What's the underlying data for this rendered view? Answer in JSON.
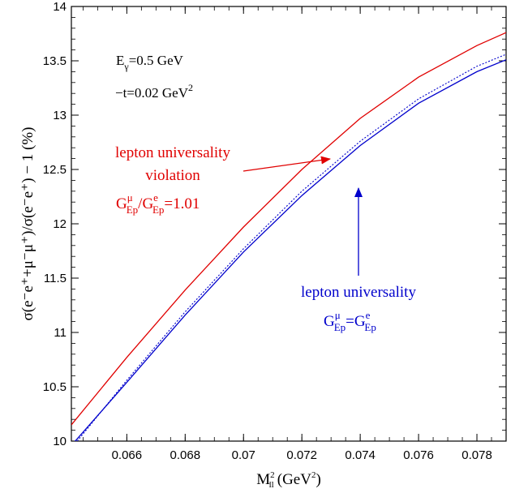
{
  "chart_data": {
    "type": "line",
    "xlabel": {
      "main": "M",
      "sup": "2",
      "sub": "ll",
      "units": "(GeV",
      "units_sup": "2",
      "units_close": ")"
    },
    "ylabel": "σ(e⁻e⁺+μ⁻μ⁺)/σ(e⁻e⁺) − 1 (%)",
    "xlim": [
      0.0641,
      0.079
    ],
    "ylim": [
      10,
      14
    ],
    "xticks": [
      0.066,
      0.068,
      0.07,
      0.072,
      0.074,
      0.076,
      0.078
    ],
    "xtick_labels": [
      "0.066",
      "0.068",
      "0.07",
      "0.072",
      "0.074",
      "0.076",
      "0.078"
    ],
    "yticks": [
      10,
      10.5,
      11,
      11.5,
      12,
      12.5,
      13,
      13.5,
      14
    ],
    "ytick_labels": [
      "10",
      "10.5",
      "11",
      "11.5",
      "12",
      "12.5",
      "13",
      "13.5",
      "14"
    ],
    "series": [
      {
        "style": "solid",
        "color": "#e00000",
        "x": [
          0.0641,
          0.066,
          0.068,
          0.07,
          0.072,
          0.074,
          0.076,
          0.078,
          0.079
        ],
        "y": [
          10.15,
          10.77,
          11.39,
          11.97,
          12.5,
          12.97,
          13.35,
          13.64,
          13.76
        ]
      },
      {
        "style": "dotted",
        "color": "#0000cc",
        "x": [
          0.0643,
          0.066,
          0.068,
          0.07,
          0.072,
          0.074,
          0.076,
          0.078,
          0.079
        ],
        "y": [
          10.0,
          10.56,
          11.19,
          11.77,
          12.3,
          12.76,
          13.15,
          13.45,
          13.56
        ]
      },
      {
        "style": "solid",
        "color": "#0000cc",
        "x": [
          0.0641,
          0.066,
          0.068,
          0.07,
          0.072,
          0.074,
          0.076,
          0.078,
          0.079
        ],
        "y": [
          9.96,
          10.54,
          11.16,
          11.74,
          12.26,
          12.72,
          13.11,
          13.4,
          13.51
        ]
      }
    ],
    "annotations": {
      "energy": {
        "E": "E",
        "sub": "γ",
        "rest": "=0.5 GeV"
      },
      "t": {
        "lead": "−t=0.02 GeV",
        "sup": "2"
      },
      "violation": {
        "line1": "lepton universality",
        "line2": "violation",
        "G": "G",
        "sup1": "μ",
        "sub1": "Ep",
        "slash": "/G",
        "sup2": "e",
        "sub2": "Ep",
        "rest": "=1.01",
        "color": "#e00000"
      },
      "universality": {
        "line1": "lepton universality",
        "G": "G",
        "sup1": "μ",
        "sub1": "Ep",
        "eq": "=G",
        "sup2": "e",
        "sub2": "Ep",
        "color": "#0000cc"
      }
    }
  }
}
